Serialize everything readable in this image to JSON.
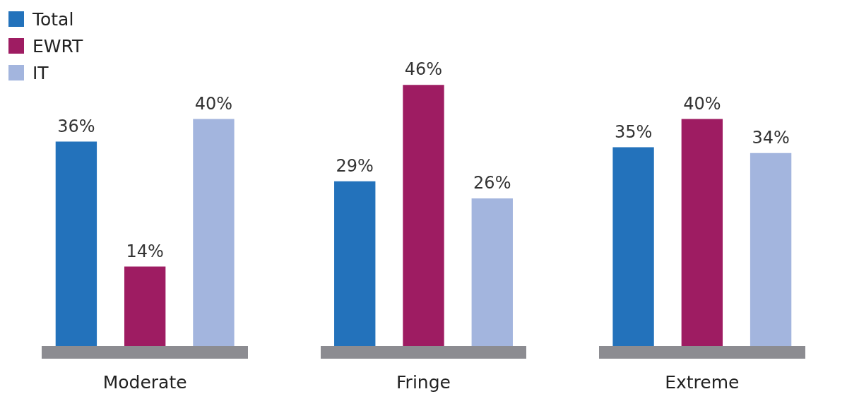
{
  "chart_data": {
    "type": "bar",
    "categories": [
      "Moderate",
      "Fringe",
      "Extreme"
    ],
    "series": [
      {
        "name": "Total",
        "color": "#2372bb",
        "values": [
          36,
          29,
          35
        ],
        "value_labels": [
          "36%",
          "29%",
          "35%"
        ]
      },
      {
        "name": "EWRT",
        "color": "#9e1c62",
        "values": [
          14,
          46,
          40
        ],
        "value_labels": [
          "14%",
          "46%",
          "40%"
        ]
      },
      {
        "name": "IT",
        "color": "#a3b5de",
        "values": [
          40,
          26,
          34
        ],
        "value_labels": [
          "40%",
          "26%",
          "34%"
        ]
      }
    ],
    "grid": false,
    "legend": "top left"
  }
}
